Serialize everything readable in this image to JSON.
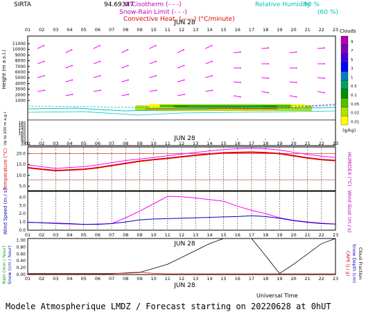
{
  "header": {
    "station": "SIRTA",
    "value": "94.69347",
    "legend_isotherm": "0°Cisotherm   (- - -)",
    "legend_snow_rain": "Snow-Rain Limit  (- - -)",
    "legend_convective": "Convective Heat. (——) (°C/minute)",
    "legend_rh": "Relative Humidity",
    "rh_90": "90 %",
    "rh_60": "(60 %)"
  },
  "footer": {
    "time_label": "Universal Time",
    "caption": "Modele Atmospherique LMDZ / Forecast starting on 20220628 at 0hUT"
  },
  "colors": {
    "temperature": "#e00000",
    "humidex": "#ff00ff",
    "wind_speed": "#ff00ff",
    "wind_gust": "#0000c0",
    "rain": "#000000",
    "snow": "#e00000",
    "arrows": "#ff00ff",
    "rh": "#00c0c0"
  },
  "chart_data": [
    {
      "type": "heatmap",
      "panel": "clouds",
      "date_label": "JUN 28",
      "x": [
        "01",
        "02",
        "03",
        "04",
        "05",
        "06",
        "07",
        "08",
        "09",
        "10",
        "11",
        "12",
        "13",
        "14",
        "15",
        "16",
        "17",
        "18",
        "19",
        "20",
        "21",
        "22",
        "23"
      ],
      "ylabel": "Height  (m a.s.l.)",
      "ylabel_low": "Up to 200 m a.g.l.",
      "yticks_upper": [
        11000,
        10000,
        9000,
        8000,
        7000,
        6000,
        5000,
        4000,
        3000,
        2000,
        1000
      ],
      "yticks_lower": [
        180,
        160,
        140,
        120,
        100,
        80,
        60,
        40,
        20
      ],
      "legend_title": "Clouds",
      "legend_unit": "(g/kg)",
      "legend_levels": [
        "9",
        "7",
        "5",
        "3",
        "1",
        "0.5",
        "0.1",
        "0.05",
        "0.02",
        "0.01"
      ],
      "legend_colors": [
        "#b000b0",
        "#8000c0",
        "#4000e0",
        "#0000ff",
        "#0080c0",
        "#00a060",
        "#009000",
        "#50c000",
        "#b0e000",
        "#ffff00"
      ]
    },
    {
      "type": "line",
      "panel": "temperature",
      "date_label": "JUN 28",
      "x": [
        "01",
        "02",
        "03",
        "04",
        "05",
        "06",
        "07",
        "08",
        "09",
        "10",
        "11",
        "12",
        "13",
        "14",
        "15",
        "16",
        "17",
        "18",
        "19",
        "20",
        "21",
        "22",
        "23"
      ],
      "ylabel": "Temperature (°C)",
      "ylabel_right": "HUMIDEX (°C)",
      "yticks": [
        20.0,
        15.0,
        10.0,
        5.0
      ],
      "ylim": [
        3.0,
        23.0
      ],
      "series": [
        {
          "name": "Temperature",
          "values": [
            13.5,
            12.8,
            12.2,
            12.5,
            12.8,
            13.5,
            14.5,
            15.5,
            16.5,
            17.2,
            17.8,
            18.5,
            19.2,
            19.8,
            20.3,
            20.5,
            20.6,
            20.4,
            20.0,
            19.0,
            18.0,
            17.2,
            16.8
          ]
        },
        {
          "name": "HUMIDEX",
          "values": [
            14.8,
            14.0,
            13.2,
            13.6,
            14.0,
            14.8,
            15.8,
            16.8,
            17.5,
            18.2,
            19.0,
            19.8,
            20.5,
            21.2,
            21.8,
            22.2,
            22.4,
            22.2,
            21.6,
            20.6,
            19.6,
            18.8,
            18.2
          ]
        }
      ],
      "reference_lines": [
        20.0,
        8.0
      ]
    },
    {
      "type": "line",
      "panel": "wind",
      "x": [
        "01",
        "02",
        "03",
        "04",
        "05",
        "06",
        "07",
        "08",
        "09",
        "10",
        "11",
        "12",
        "13",
        "14",
        "15",
        "16",
        "17",
        "18",
        "19",
        "20",
        "21",
        "22",
        "23"
      ],
      "ylabel": "Wind Speed (m / s)",
      "ylabel_right": "Wind Gust (m / s)",
      "yticks": [
        4.0,
        3.0,
        2.0,
        1.0,
        0.0
      ],
      "ylim": [
        0.0,
        4.7
      ],
      "series": [
        {
          "name": "Wind Speed",
          "values": [
            0.95,
            0.9,
            0.8,
            0.75,
            0.7,
            0.75,
            0.8,
            1.5,
            2.3,
            3.2,
            4.1,
            4.05,
            3.9,
            3.7,
            3.5,
            2.9,
            2.4,
            2.0,
            1.5,
            1.2,
            1.0,
            0.85,
            0.75
          ]
        },
        {
          "name": "Wind Gust",
          "values": [
            0.95,
            0.9,
            0.85,
            0.8,
            0.7,
            0.7,
            0.8,
            1.0,
            1.25,
            1.35,
            1.4,
            1.45,
            1.5,
            1.55,
            1.6,
            1.65,
            1.75,
            1.65,
            1.45,
            1.15,
            0.95,
            0.8,
            0.75
          ]
        }
      ]
    },
    {
      "type": "line",
      "panel": "precipitation",
      "date_label": "JUN 28",
      "x": [
        "01",
        "02",
        "03",
        "04",
        "05",
        "06",
        "07",
        "08",
        "09",
        "10",
        "11",
        "12",
        "13",
        "14",
        "15",
        "16",
        "17",
        "18",
        "19",
        "20",
        "21",
        "22",
        "23"
      ],
      "ylabel": "Rain (mm / hour)",
      "ylabel2": "Snow (cm / hour)",
      "ylabel_right": "CAPE (J / g)",
      "ylabel_right2": "Snow Depth (cm)",
      "ylabel_right3": "Cloud Fraction",
      "yticks": [
        1.0,
        0.8,
        0.6,
        0.4,
        0.2,
        0.0
      ],
      "ylim": [
        0.0,
        1.05
      ],
      "series": [
        {
          "name": "Rain",
          "values": [
            0.03,
            0.03,
            0.03,
            0.03,
            0.03,
            0.03,
            0.03,
            0.04,
            0.06,
            0.18,
            0.3,
            0.5,
            0.7,
            0.9,
            1.05,
            1.05,
            1.05,
            0.55,
            0.03,
            0.3,
            0.6,
            0.9,
            1.05
          ]
        },
        {
          "name": "Snow",
          "values": [
            0.02,
            0.02,
            0.02,
            0.02,
            0.02,
            0.02,
            0.02,
            0.05,
            0.07,
            0.03,
            0.02,
            0.02,
            0.02,
            0.02,
            0.02,
            0.02,
            0.02,
            0.02,
            0.02,
            0.02,
            0.02,
            0.02,
            0.02
          ]
        }
      ]
    }
  ]
}
